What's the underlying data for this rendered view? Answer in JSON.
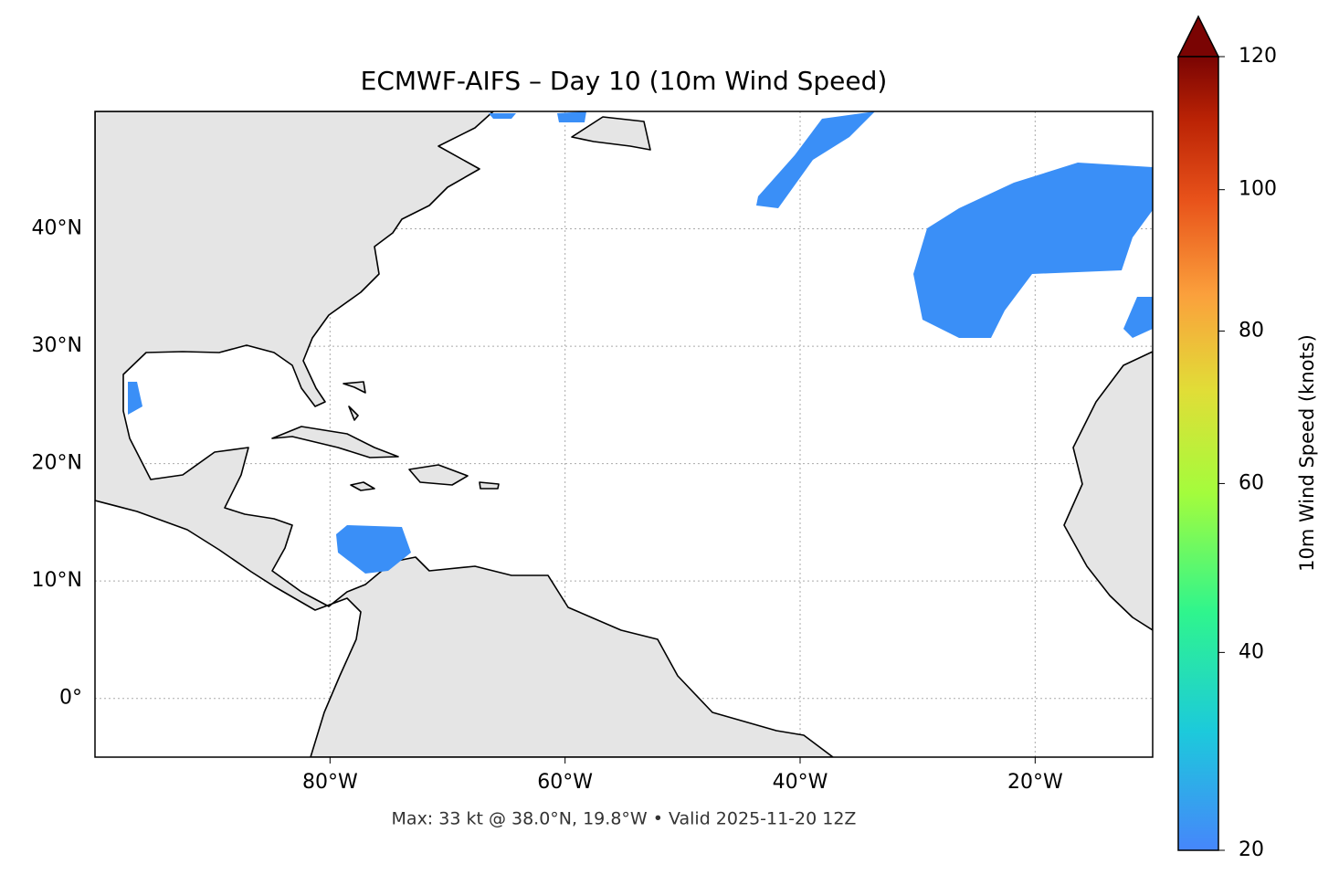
{
  "map": {
    "title": "ECMWF-AIFS – Day 10 (10m Wind Speed)",
    "lon_range": [
      -100,
      -10
    ],
    "lat_range": [
      -5,
      50
    ],
    "lon_ticks": [
      {
        "value": -80,
        "label": "80°W"
      },
      {
        "value": -60,
        "label": "60°W"
      },
      {
        "value": -40,
        "label": "40°W"
      },
      {
        "value": -20,
        "label": "20°W"
      }
    ],
    "lat_ticks": [
      {
        "value": 0,
        "label": "0°"
      },
      {
        "value": 10,
        "label": "10°N"
      },
      {
        "value": 20,
        "label": "20°N"
      },
      {
        "value": 30,
        "label": "30°N"
      },
      {
        "value": 40,
        "label": "40°N"
      }
    ],
    "footer": "Max: 33 kt @ 38.0°N, 19.8°W • Valid 2025-11-20 12Z"
  },
  "colorbar": {
    "label": "10m Wind Speed (knots)",
    "range": [
      20,
      120
    ],
    "ticks": [
      20,
      40,
      60,
      80,
      100,
      120
    ]
  }
}
